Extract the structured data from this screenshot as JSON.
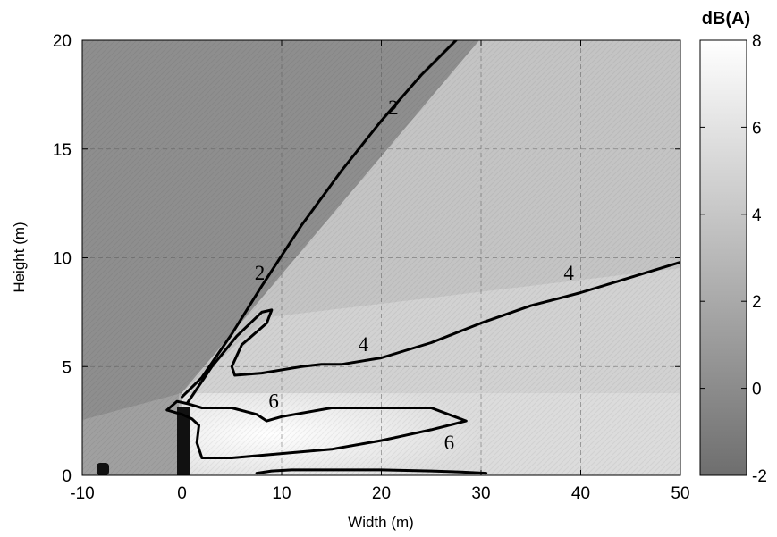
{
  "chart_data": {
    "type": "heatmap",
    "xlabel": "Width (m)",
    "ylabel": "Height (m)",
    "xlim": [
      -10,
      50
    ],
    "ylim": [
      0,
      20
    ],
    "x_ticks": [
      "-10",
      "0",
      "10",
      "20",
      "30",
      "40",
      "50"
    ],
    "y_ticks": [
      "0",
      "5",
      "10",
      "15",
      "20"
    ],
    "grid": true,
    "colorbar": {
      "title": "dB(A)",
      "range": [
        -2,
        8
      ],
      "ticks": [
        "-2",
        "0",
        "2",
        "4",
        "6",
        "8"
      ],
      "color_low": "#6e6e6e",
      "color_high": "#ffffff"
    },
    "contours": [
      {
        "level": 2,
        "points": [
          [
            0,
            3.6
          ],
          [
            2,
            4.5
          ],
          [
            5,
            6.5
          ],
          [
            8,
            8.7
          ],
          [
            12,
            11.5
          ],
          [
            16,
            14.0
          ],
          [
            20,
            16.3
          ],
          [
            24,
            18.4
          ],
          [
            27.5,
            20
          ]
        ]
      },
      {
        "level": 4,
        "points": [
          [
            0.5,
            3.3
          ],
          [
            3,
            5.0
          ],
          [
            5.5,
            6.4
          ],
          [
            8,
            7.5
          ],
          [
            9,
            7.6
          ],
          [
            8.5,
            7.0
          ],
          [
            6,
            6.0
          ],
          [
            5,
            5.0
          ],
          [
            5.3,
            4.6
          ],
          [
            8,
            4.7
          ],
          [
            12,
            5.0
          ],
          [
            14,
            5.1
          ],
          [
            16,
            5.1
          ],
          [
            20,
            5.4
          ],
          [
            25,
            6.1
          ],
          [
            30,
            7.0
          ],
          [
            35,
            7.8
          ],
          [
            40,
            8.4
          ],
          [
            45,
            9.1
          ],
          [
            50,
            9.8
          ]
        ]
      },
      {
        "level": 6,
        "points": [
          [
            -1.5,
            3.0
          ],
          [
            -0.5,
            3.4
          ],
          [
            0.5,
            3.3
          ],
          [
            2,
            3.1
          ],
          [
            5,
            3.1
          ],
          [
            7.5,
            2.8
          ],
          [
            8.5,
            2.5
          ],
          [
            10,
            2.7
          ],
          [
            15,
            3.1
          ],
          [
            20,
            3.1
          ],
          [
            25,
            3.1
          ],
          [
            28.5,
            2.5
          ],
          [
            25,
            2.1
          ],
          [
            22,
            1.8
          ],
          [
            20,
            1.6
          ],
          [
            15,
            1.2
          ],
          [
            10,
            1.0
          ],
          [
            5,
            0.8
          ],
          [
            2,
            0.8
          ],
          [
            1.5,
            1.5
          ],
          [
            1.7,
            2.3
          ],
          [
            1,
            2.6
          ],
          [
            0,
            2.8
          ],
          [
            -1.5,
            3.0
          ]
        ]
      },
      {
        "level": 6,
        "points": [
          [
            7.5,
            0.1
          ],
          [
            9,
            0.2
          ],
          [
            11,
            0.25
          ],
          [
            15,
            0.25
          ],
          [
            20,
            0.25
          ],
          [
            25,
            0.2
          ],
          [
            28,
            0.15
          ],
          [
            30.5,
            0.1
          ]
        ]
      }
    ],
    "contour_labels": [
      {
        "text": "2",
        "x": 21.2,
        "y": 16.6
      },
      {
        "text": "2",
        "x": 7.8,
        "y": 9.0
      },
      {
        "text": "4",
        "x": 38.8,
        "y": 9.0
      },
      {
        "text": "4",
        "x": 18.2,
        "y": 5.7
      },
      {
        "text": "6",
        "x": 9.2,
        "y": 3.1
      },
      {
        "text": "6",
        "x": 26.8,
        "y": 1.2
      }
    ]
  }
}
